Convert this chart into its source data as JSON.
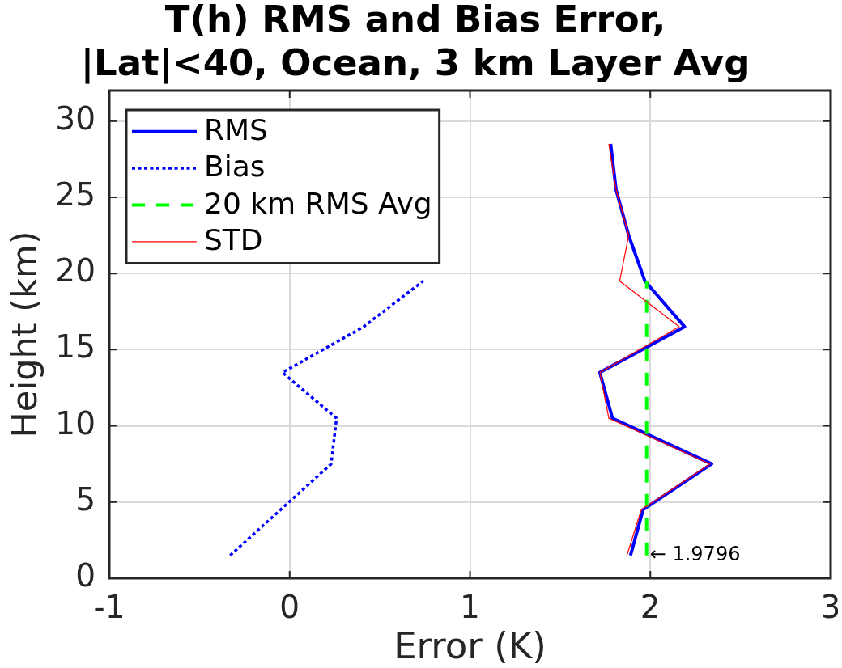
{
  "chart_data": {
    "type": "line",
    "title": "T(h) RMS and Bias Error,\n|Lat|<40, Ocean, 3 km Layer Avg",
    "xlabel": "Error (K)",
    "ylabel": "Height (km)",
    "xlim": [
      -1,
      3
    ],
    "xticks": [
      -1,
      0,
      1,
      2,
      3
    ],
    "ylim": [
      0,
      32
    ],
    "yticks": [
      0,
      5,
      10,
      15,
      20,
      25,
      30
    ],
    "grid": true,
    "legend": "top left",
    "marker": "none",
    "series": [
      {
        "name": "RMS",
        "color": "#0000ff",
        "line_style": "solid",
        "x": [
          1.89,
          1.96,
          2.34,
          1.79,
          1.72,
          2.19,
          1.97,
          1.88,
          1.81,
          1.78
        ],
        "values": [
          1.5,
          4.5,
          7.5,
          10.5,
          13.5,
          16.5,
          19.5,
          22.5,
          25.5,
          28.5
        ]
      },
      {
        "name": "Bias",
        "color": "#0000ff",
        "line_style": "dotted",
        "x": [
          -0.33,
          0.23,
          0.26,
          -0.04,
          0.41,
          0.74
        ],
        "values": [
          1.5,
          7.5,
          10.5,
          13.5,
          16.5,
          19.5
        ]
      },
      {
        "name": "20 km RMS Avg",
        "color": "#00ff00",
        "line_style": "dashed",
        "x": [
          1.9796,
          1.9796
        ],
        "values": [
          1.5,
          19.5
        ]
      },
      {
        "name": "STD",
        "color": "#ff0000",
        "line_style": "solid",
        "x": [
          1.87,
          1.95,
          2.33,
          1.77,
          1.72,
          2.16,
          1.83,
          1.88,
          1.81,
          1.77
        ],
        "values": [
          1.5,
          4.5,
          7.5,
          10.5,
          13.5,
          16.5,
          19.5,
          22.5,
          25.5,
          28.5
        ]
      }
    ],
    "annotations": [
      {
        "text": "← 1.9796",
        "x": 1.9796,
        "y": 1.5
      }
    ]
  }
}
